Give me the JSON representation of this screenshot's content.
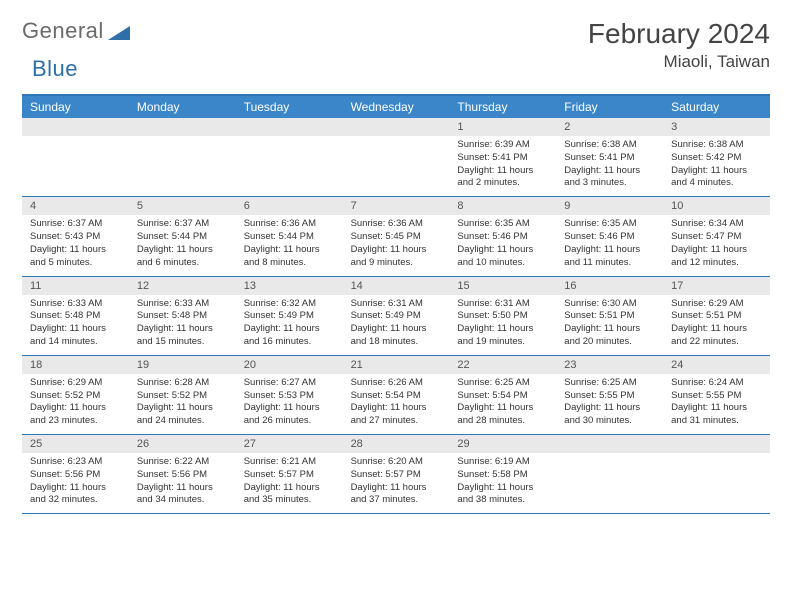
{
  "brand": {
    "part1": "General",
    "part2": "Blue"
  },
  "title": "February 2024",
  "location": "Miaoli, Taiwan",
  "colors": {
    "header_bg": "#3b86c8",
    "border": "#2f78b8",
    "daynum_bg": "#e9e9e9",
    "text": "#333333"
  },
  "day_labels": [
    "Sunday",
    "Monday",
    "Tuesday",
    "Wednesday",
    "Thursday",
    "Friday",
    "Saturday"
  ],
  "weeks": [
    [
      {
        "n": "",
        "sr": "",
        "ss": "",
        "dl1": "",
        "dl2": ""
      },
      {
        "n": "",
        "sr": "",
        "ss": "",
        "dl1": "",
        "dl2": ""
      },
      {
        "n": "",
        "sr": "",
        "ss": "",
        "dl1": "",
        "dl2": ""
      },
      {
        "n": "",
        "sr": "",
        "ss": "",
        "dl1": "",
        "dl2": ""
      },
      {
        "n": "1",
        "sr": "Sunrise: 6:39 AM",
        "ss": "Sunset: 5:41 PM",
        "dl1": "Daylight: 11 hours",
        "dl2": "and 2 minutes."
      },
      {
        "n": "2",
        "sr": "Sunrise: 6:38 AM",
        "ss": "Sunset: 5:41 PM",
        "dl1": "Daylight: 11 hours",
        "dl2": "and 3 minutes."
      },
      {
        "n": "3",
        "sr": "Sunrise: 6:38 AM",
        "ss": "Sunset: 5:42 PM",
        "dl1": "Daylight: 11 hours",
        "dl2": "and 4 minutes."
      }
    ],
    [
      {
        "n": "4",
        "sr": "Sunrise: 6:37 AM",
        "ss": "Sunset: 5:43 PM",
        "dl1": "Daylight: 11 hours",
        "dl2": "and 5 minutes."
      },
      {
        "n": "5",
        "sr": "Sunrise: 6:37 AM",
        "ss": "Sunset: 5:44 PM",
        "dl1": "Daylight: 11 hours",
        "dl2": "and 6 minutes."
      },
      {
        "n": "6",
        "sr": "Sunrise: 6:36 AM",
        "ss": "Sunset: 5:44 PM",
        "dl1": "Daylight: 11 hours",
        "dl2": "and 8 minutes."
      },
      {
        "n": "7",
        "sr": "Sunrise: 6:36 AM",
        "ss": "Sunset: 5:45 PM",
        "dl1": "Daylight: 11 hours",
        "dl2": "and 9 minutes."
      },
      {
        "n": "8",
        "sr": "Sunrise: 6:35 AM",
        "ss": "Sunset: 5:46 PM",
        "dl1": "Daylight: 11 hours",
        "dl2": "and 10 minutes."
      },
      {
        "n": "9",
        "sr": "Sunrise: 6:35 AM",
        "ss": "Sunset: 5:46 PM",
        "dl1": "Daylight: 11 hours",
        "dl2": "and 11 minutes."
      },
      {
        "n": "10",
        "sr": "Sunrise: 6:34 AM",
        "ss": "Sunset: 5:47 PM",
        "dl1": "Daylight: 11 hours",
        "dl2": "and 12 minutes."
      }
    ],
    [
      {
        "n": "11",
        "sr": "Sunrise: 6:33 AM",
        "ss": "Sunset: 5:48 PM",
        "dl1": "Daylight: 11 hours",
        "dl2": "and 14 minutes."
      },
      {
        "n": "12",
        "sr": "Sunrise: 6:33 AM",
        "ss": "Sunset: 5:48 PM",
        "dl1": "Daylight: 11 hours",
        "dl2": "and 15 minutes."
      },
      {
        "n": "13",
        "sr": "Sunrise: 6:32 AM",
        "ss": "Sunset: 5:49 PM",
        "dl1": "Daylight: 11 hours",
        "dl2": "and 16 minutes."
      },
      {
        "n": "14",
        "sr": "Sunrise: 6:31 AM",
        "ss": "Sunset: 5:49 PM",
        "dl1": "Daylight: 11 hours",
        "dl2": "and 18 minutes."
      },
      {
        "n": "15",
        "sr": "Sunrise: 6:31 AM",
        "ss": "Sunset: 5:50 PM",
        "dl1": "Daylight: 11 hours",
        "dl2": "and 19 minutes."
      },
      {
        "n": "16",
        "sr": "Sunrise: 6:30 AM",
        "ss": "Sunset: 5:51 PM",
        "dl1": "Daylight: 11 hours",
        "dl2": "and 20 minutes."
      },
      {
        "n": "17",
        "sr": "Sunrise: 6:29 AM",
        "ss": "Sunset: 5:51 PM",
        "dl1": "Daylight: 11 hours",
        "dl2": "and 22 minutes."
      }
    ],
    [
      {
        "n": "18",
        "sr": "Sunrise: 6:29 AM",
        "ss": "Sunset: 5:52 PM",
        "dl1": "Daylight: 11 hours",
        "dl2": "and 23 minutes."
      },
      {
        "n": "19",
        "sr": "Sunrise: 6:28 AM",
        "ss": "Sunset: 5:52 PM",
        "dl1": "Daylight: 11 hours",
        "dl2": "and 24 minutes."
      },
      {
        "n": "20",
        "sr": "Sunrise: 6:27 AM",
        "ss": "Sunset: 5:53 PM",
        "dl1": "Daylight: 11 hours",
        "dl2": "and 26 minutes."
      },
      {
        "n": "21",
        "sr": "Sunrise: 6:26 AM",
        "ss": "Sunset: 5:54 PM",
        "dl1": "Daylight: 11 hours",
        "dl2": "and 27 minutes."
      },
      {
        "n": "22",
        "sr": "Sunrise: 6:25 AM",
        "ss": "Sunset: 5:54 PM",
        "dl1": "Daylight: 11 hours",
        "dl2": "and 28 minutes."
      },
      {
        "n": "23",
        "sr": "Sunrise: 6:25 AM",
        "ss": "Sunset: 5:55 PM",
        "dl1": "Daylight: 11 hours",
        "dl2": "and 30 minutes."
      },
      {
        "n": "24",
        "sr": "Sunrise: 6:24 AM",
        "ss": "Sunset: 5:55 PM",
        "dl1": "Daylight: 11 hours",
        "dl2": "and 31 minutes."
      }
    ],
    [
      {
        "n": "25",
        "sr": "Sunrise: 6:23 AM",
        "ss": "Sunset: 5:56 PM",
        "dl1": "Daylight: 11 hours",
        "dl2": "and 32 minutes."
      },
      {
        "n": "26",
        "sr": "Sunrise: 6:22 AM",
        "ss": "Sunset: 5:56 PM",
        "dl1": "Daylight: 11 hours",
        "dl2": "and 34 minutes."
      },
      {
        "n": "27",
        "sr": "Sunrise: 6:21 AM",
        "ss": "Sunset: 5:57 PM",
        "dl1": "Daylight: 11 hours",
        "dl2": "and 35 minutes."
      },
      {
        "n": "28",
        "sr": "Sunrise: 6:20 AM",
        "ss": "Sunset: 5:57 PM",
        "dl1": "Daylight: 11 hours",
        "dl2": "and 37 minutes."
      },
      {
        "n": "29",
        "sr": "Sunrise: 6:19 AM",
        "ss": "Sunset: 5:58 PM",
        "dl1": "Daylight: 11 hours",
        "dl2": "and 38 minutes."
      },
      {
        "n": "",
        "sr": "",
        "ss": "",
        "dl1": "",
        "dl2": ""
      },
      {
        "n": "",
        "sr": "",
        "ss": "",
        "dl1": "",
        "dl2": ""
      }
    ]
  ]
}
